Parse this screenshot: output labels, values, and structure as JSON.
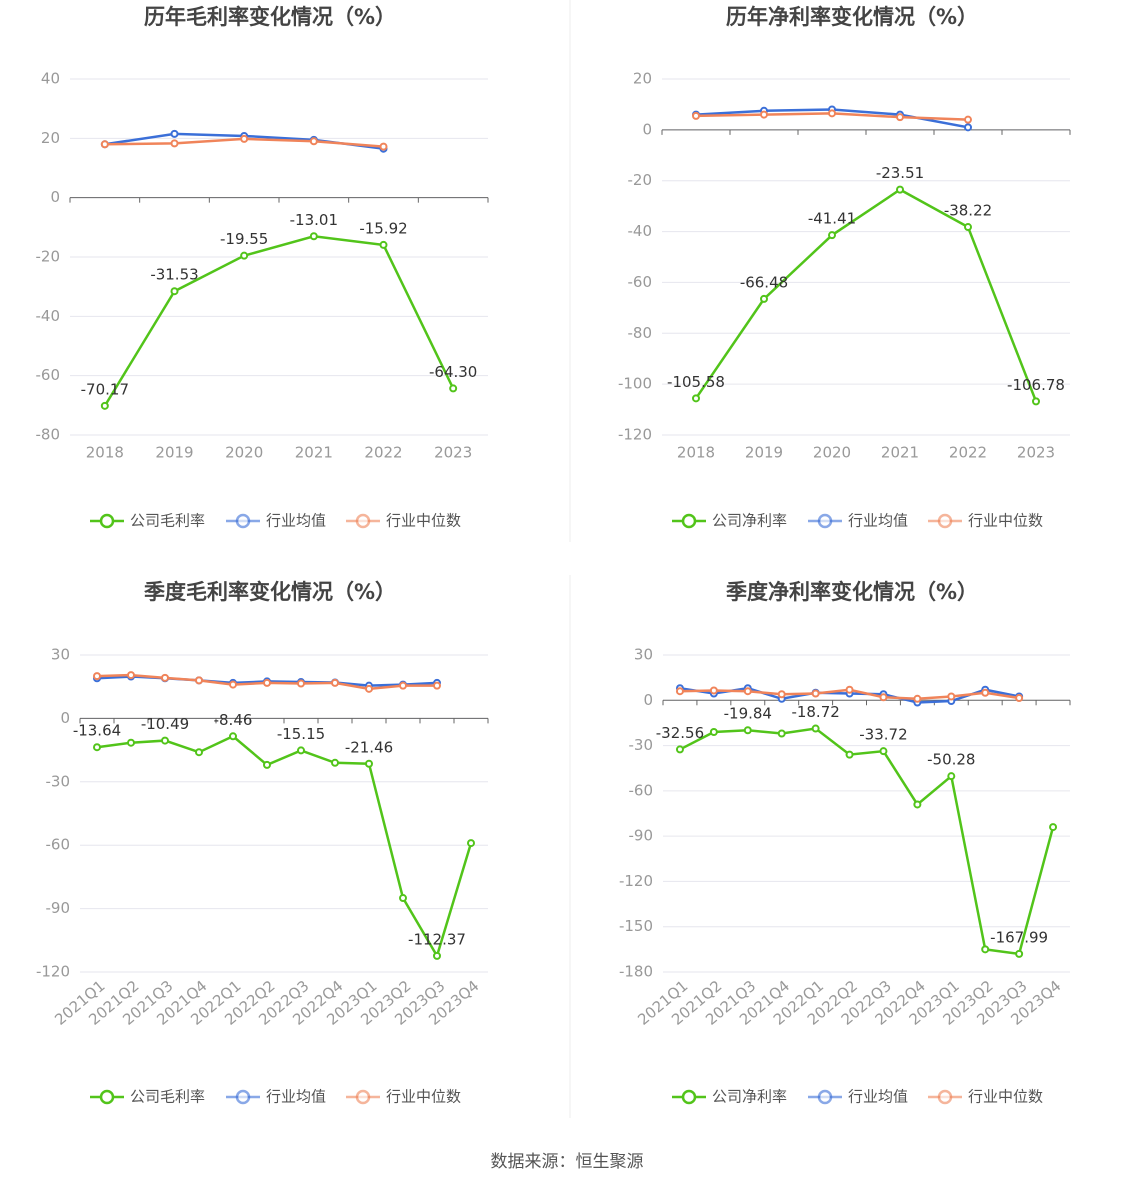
{
  "chart_data": [
    {
      "type": "line",
      "title": "历年毛利率变化情况（%）",
      "categories": [
        "2018",
        "2019",
        "2020",
        "2021",
        "2022",
        "2023"
      ],
      "ylim": [
        -80,
        40
      ],
      "yticks": [
        -80,
        -60,
        -40,
        -20,
        0,
        20,
        40
      ],
      "grid": true,
      "series": [
        {
          "name": "公司毛利率",
          "color": "#52c41a",
          "values": [
            -70.17,
            -31.53,
            -19.55,
            -13.01,
            -15.92,
            -64.3
          ],
          "value_labels": [
            "-70.17",
            "-31.53",
            "-19.55",
            "-13.01",
            "-15.92",
            "-64.30"
          ]
        },
        {
          "name": "行业均值",
          "color": "#3b6fd8",
          "values": [
            18,
            21.5,
            20.8,
            19.5,
            16.5,
            null
          ]
        },
        {
          "name": "行业中位数",
          "color": "#f0845a",
          "values": [
            18,
            18.3,
            19.8,
            19,
            17.2,
            null
          ]
        }
      ]
    },
    {
      "type": "line",
      "title": "历年净利率变化情况（%）",
      "categories": [
        "2018",
        "2019",
        "2020",
        "2021",
        "2022",
        "2023"
      ],
      "ylim": [
        -120,
        20
      ],
      "yticks": [
        -120,
        -100,
        -80,
        -60,
        -40,
        -20,
        0,
        20
      ],
      "grid": true,
      "series": [
        {
          "name": "公司净利率",
          "color": "#52c41a",
          "values": [
            -105.58,
            -66.48,
            -41.41,
            -23.51,
            -38.22,
            -106.78
          ],
          "value_labels": [
            "-105.58",
            "-66.48",
            "-41.41",
            "-23.51",
            "-38.22",
            "-106.78"
          ]
        },
        {
          "name": "行业均值",
          "color": "#3b6fd8",
          "values": [
            6,
            7.5,
            8,
            6,
            1,
            null
          ]
        },
        {
          "name": "行业中位数",
          "color": "#f0845a",
          "values": [
            5.5,
            6,
            6.5,
            5,
            4,
            null
          ]
        }
      ]
    },
    {
      "type": "line",
      "title": "季度毛利率变化情况（%）",
      "categories": [
        "2021Q1",
        "2021Q2",
        "2021Q3",
        "2021Q4",
        "2022Q1",
        "2022Q2",
        "2022Q3",
        "2022Q4",
        "2023Q1",
        "2023Q2",
        "2023Q3",
        "2023Q4"
      ],
      "ylim": [
        -120,
        30
      ],
      "yticks": [
        -120,
        -90,
        -60,
        -30,
        0,
        30
      ],
      "grid": true,
      "series": [
        {
          "name": "公司毛利率",
          "color": "#52c41a",
          "values": [
            -13.64,
            -11.5,
            -10.49,
            -16,
            -8.46,
            -22,
            -15.15,
            -21,
            -21.46,
            -85,
            -112.37,
            -59
          ],
          "value_labels": [
            "-13.64",
            null,
            "-10.49",
            null,
            "-8.46",
            null,
            "-15.15",
            null,
            "-21.46",
            null,
            "-112.37",
            null
          ]
        },
        {
          "name": "行业均值",
          "color": "#3b6fd8",
          "values": [
            19,
            19.8,
            19,
            18,
            16.8,
            17.5,
            17.2,
            17,
            15.5,
            16,
            16.8,
            null
          ]
        },
        {
          "name": "行业中位数",
          "color": "#f0845a",
          "values": [
            20,
            20.5,
            19.2,
            18,
            16,
            16.8,
            16.5,
            16.8,
            14,
            15.5,
            15.5,
            null
          ]
        }
      ]
    },
    {
      "type": "line",
      "title": "季度净利率变化情况（%）",
      "categories": [
        "2021Q1",
        "2021Q2",
        "2021Q3",
        "2021Q4",
        "2022Q1",
        "2022Q2",
        "2022Q3",
        "2022Q4",
        "2023Q1",
        "2023Q2",
        "2023Q3",
        "2023Q4"
      ],
      "ylim": [
        -180,
        30
      ],
      "yticks": [
        -180,
        -150,
        -120,
        -90,
        -60,
        -30,
        0,
        30
      ],
      "grid": true,
      "series": [
        {
          "name": "公司净利率",
          "color": "#52c41a",
          "values": [
            -32.56,
            -21,
            -19.84,
            -22,
            -18.72,
            -36,
            -33.72,
            -69,
            -50.28,
            -165,
            -167.99,
            -84
          ],
          "value_labels": [
            "-32.56",
            null,
            "-19.84",
            null,
            "-18.72",
            null,
            "-33.72",
            null,
            "-50.28",
            null,
            "-167.99",
            null
          ]
        },
        {
          "name": "行业均值",
          "color": "#3b6fd8",
          "values": [
            8,
            4.5,
            8,
            1,
            5,
            4.5,
            4,
            -1.5,
            -0.5,
            7,
            2.5,
            null
          ]
        },
        {
          "name": "行业中位数",
          "color": "#f0845a",
          "values": [
            6,
            6.5,
            6,
            4,
            4.5,
            7,
            2,
            1,
            2.5,
            5,
            1.5,
            null
          ]
        }
      ]
    }
  ],
  "source": "数据来源：恒生聚源"
}
